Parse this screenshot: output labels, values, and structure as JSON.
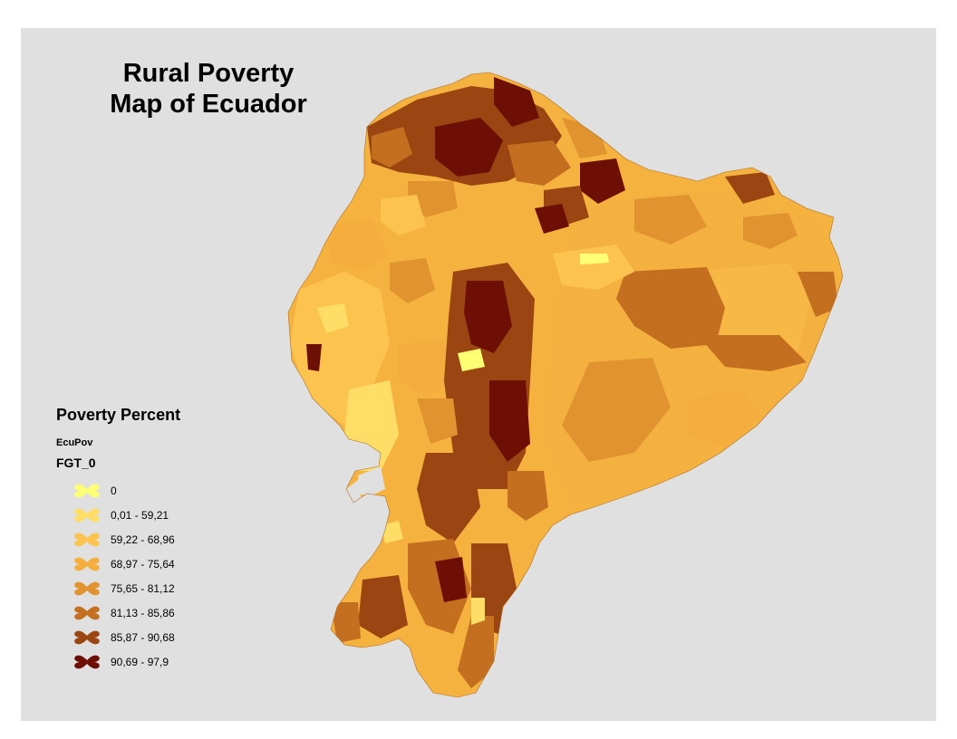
{
  "title": {
    "line1": "Rural Poverty",
    "line2": "Map of Ecuador"
  },
  "legend": {
    "heading": "Poverty Percent",
    "layer": "EcuPov",
    "field": "FGT_0",
    "classes": [
      {
        "label": "0",
        "color": "#ffff73"
      },
      {
        "label": "0,01 - 59,21",
        "color": "#ffdd66"
      },
      {
        "label": "59,22 - 68,96",
        "color": "#fcc44f"
      },
      {
        "label": "68,97 - 75,64",
        "color": "#f5ae3d"
      },
      {
        "label": "75,65 - 81,12",
        "color": "#e0932e"
      },
      {
        "label": "81,13 - 85,86",
        "color": "#c46e1f"
      },
      {
        "label": "85,87 - 90,68",
        "color": "#9a4512"
      },
      {
        "label": "90,69 - 97,9",
        "color": "#6e0f05"
      }
    ]
  }
}
